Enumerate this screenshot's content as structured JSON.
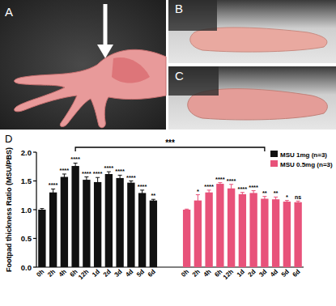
{
  "panels": [
    "A",
    "B",
    "C",
    "D"
  ],
  "chart_data": {
    "type": "bar",
    "y_label": "Footpad thickness Ratio (MSU/PBS)",
    "categories": [
      "0h",
      "2h",
      "4h",
      "6h",
      "12h",
      "1d",
      "2d",
      "3d",
      "4d",
      "5d",
      "6d"
    ],
    "series": [
      {
        "name": "MSU 1mg (n=3)",
        "color": "#111111",
        "values": [
          1.0,
          1.3,
          1.57,
          1.76,
          1.52,
          1.48,
          1.62,
          1.55,
          1.47,
          1.29,
          1.16
        ],
        "errors": [
          0.02,
          0.06,
          0.05,
          0.05,
          0.05,
          0.08,
          0.04,
          0.05,
          0.03,
          0.05,
          0.02
        ],
        "significance": [
          null,
          "****",
          "****",
          "****",
          "****",
          "****",
          "****",
          "****",
          "****",
          "****",
          "**"
        ]
      },
      {
        "name": "MSU 0.5mg (n=3)",
        "color": "#e8527a",
        "values": [
          1.0,
          1.16,
          1.3,
          1.45,
          1.37,
          1.27,
          1.29,
          1.19,
          1.18,
          1.14,
          1.13
        ],
        "errors": [
          0.01,
          0.1,
          0.04,
          0.02,
          0.07,
          0.03,
          0.04,
          0.04,
          0.04,
          0.02,
          0.02
        ],
        "significance": [
          null,
          "*",
          "****",
          "****",
          "****",
          "****",
          "****",
          "**",
          "**",
          "*",
          "ns"
        ]
      }
    ],
    "annotations": [
      {
        "text": "***",
        "from": {
          "series": 0,
          "index": 3
        },
        "to": {
          "series": 1,
          "index": 7
        }
      }
    ],
    "ylim": [
      0,
      2.0
    ],
    "yticks": [
      {
        "value": 0,
        "label": "0.0"
      },
      0.5,
      {
        "value": 1.0,
        "label": "1.0"
      },
      1.5,
      {
        "value": 2.0,
        "label": "2.0"
      }
    ],
    "legend": "top-right",
    "grid": false
  }
}
